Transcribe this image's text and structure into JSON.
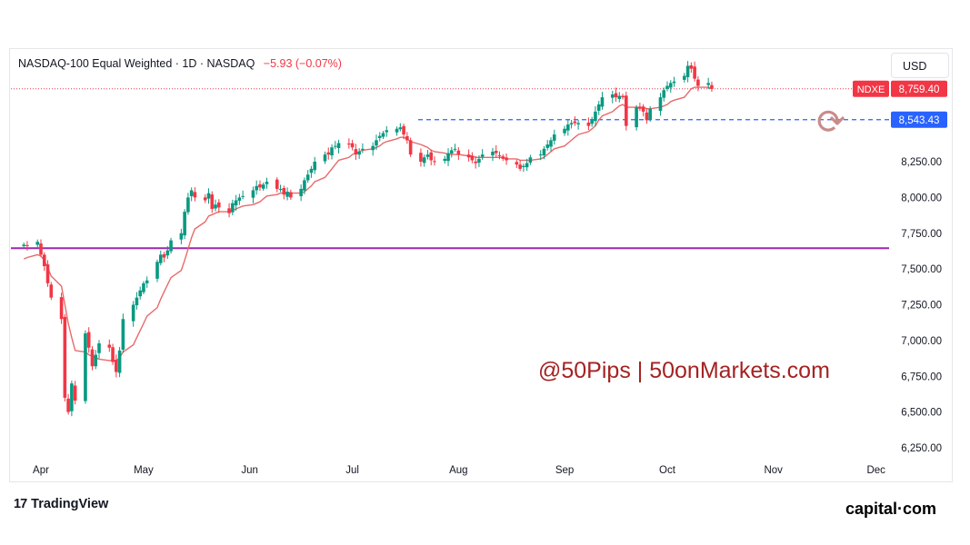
{
  "header": {
    "title": "NASDAQ-100 Equal Weighted · 1D · NASDAQ",
    "change": "−5.93 (−0.07%)",
    "currency": "USD"
  },
  "watermark": "@50Pips | 50onMarkets.com",
  "branding": {
    "tradingview": "TradingView",
    "tradingview_icon": "tradingview-logo",
    "broker": "capital·com"
  },
  "colors": {
    "up": "#089981",
    "down": "#f23645",
    "ma": "#e86a6a",
    "support": "#9c27b0",
    "level_line": "#2962ff",
    "price_label": "#f23645",
    "level_label": "#2962ff"
  },
  "chart_data": {
    "type": "candlestick",
    "ylim": [
      6150,
      9050
    ],
    "y_ticks": [
      "6,250.00",
      "6,500.00",
      "6,750.00",
      "7,000.00",
      "7,250.00",
      "7,500.00",
      "7,750.00",
      "8,000.00",
      "8,250.00"
    ],
    "x_ticks": [
      "Apr",
      "May",
      "Jun",
      "Jul",
      "Aug",
      "Sep",
      "Oct",
      "Nov",
      "Dec"
    ],
    "symbol_label": "NDXE",
    "last_price": 8759.4,
    "last_price_label": "8,759.40",
    "horizontal_levels": [
      {
        "value": 8543.43,
        "label": "8,543.43",
        "style": "dashed"
      },
      {
        "value": 7645,
        "label": "",
        "style": "solid"
      }
    ],
    "series": [
      {
        "name": "NDXE daily close (approx.)",
        "start": "2025-03-27",
        "close": [
          7670,
          7660,
          7690,
          7600,
          7520,
          7400,
          7300,
          7150,
          6600,
          6500,
          6700,
          6580,
          7050,
          6950,
          6820,
          6900,
          6980,
          6950,
          6850,
          6780,
          6930,
          7150,
          7250,
          7300,
          7350,
          7400,
          7420,
          7550,
          7600,
          7580,
          7630,
          7700,
          7750,
          7900,
          8000,
          8050,
          8000,
          7980,
          8030,
          7920,
          7950,
          7930,
          7890,
          7960,
          7980,
          8000,
          8010,
          8050,
          8080,
          8070,
          8090,
          8110,
          8060,
          8060,
          8020,
          8040,
          8000,
          8060,
          8120,
          8160,
          8200,
          8250,
          8300,
          8300,
          8350,
          8360,
          8380,
          8370,
          8350,
          8300,
          8320,
          8340,
          8360,
          8400,
          8430,
          8450,
          8470,
          8480,
          8490,
          8440,
          8400,
          8300,
          8250,
          8280,
          8300,
          8260,
          8250,
          8270,
          8310,
          8330,
          8340,
          8300,
          8280,
          8260,
          8240,
          8270,
          8300,
          8320,
          8310,
          8290,
          8270,
          8260,
          8230,
          8200,
          8220,
          8240,
          8280,
          8300,
          8340,
          8370,
          8400,
          8440,
          8480,
          8510,
          8520,
          8520,
          8520,
          8500,
          8540,
          8600,
          8650,
          8700,
          8720,
          8700,
          8710,
          8700,
          8500,
          8630,
          8620,
          8600,
          8540,
          8620,
          8700,
          8750,
          8780,
          8800,
          8810,
          8850,
          8920,
          8900,
          8830,
          8780,
          8800,
          8759.4
        ]
      },
      {
        "name": "Moving average (approx.)",
        "start": "2025-03-27",
        "close": [
          7570,
          7580,
          7600,
          7590,
          7560,
          7510,
          7450,
          7380,
          7250,
          7120,
          7020,
          6930,
          6920,
          6900,
          6890,
          6880,
          6870,
          6860,
          6860,
          6860,
          6880,
          6920,
          6970,
          7020,
          7070,
          7120,
          7170,
          7230,
          7290,
          7340,
          7390,
          7440,
          7490,
          7560,
          7640,
          7720,
          7780,
          7830,
          7870,
          7880,
          7890,
          7900,
          7900,
          7910,
          7920,
          7930,
          7940,
          7950,
          7960,
          7970,
          7990,
          8010,
          8020,
          8030,
          8030,
          8030,
          8030,
          8030,
          8040,
          8060,
          8080,
          8110,
          8140,
          8170,
          8200,
          8230,
          8260,
          8280,
          8300,
          8310,
          8320,
          8330,
          8340,
          8350,
          8360,
          8380,
          8390,
          8410,
          8420,
          8420,
          8410,
          8390,
          8370,
          8360,
          8350,
          8330,
          8320,
          8310,
          8300,
          8300,
          8300,
          8300,
          8290,
          8290,
          8280,
          8280,
          8280,
          8280,
          8280,
          8280,
          8280,
          8270,
          8270,
          8260,
          8260,
          8260,
          8260,
          8270,
          8280,
          8300,
          8320,
          8340,
          8360,
          8380,
          8400,
          8420,
          8440,
          8460,
          8480,
          8500,
          8540,
          8570,
          8600,
          8620,
          8640,
          8650,
          8630,
          8630,
          8630,
          8630,
          8620,
          8620,
          8630,
          8640,
          8650,
          8670,
          8680,
          8700,
          8730,
          8760,
          8770,
          8770,
          8770,
          8760
        ]
      }
    ]
  }
}
